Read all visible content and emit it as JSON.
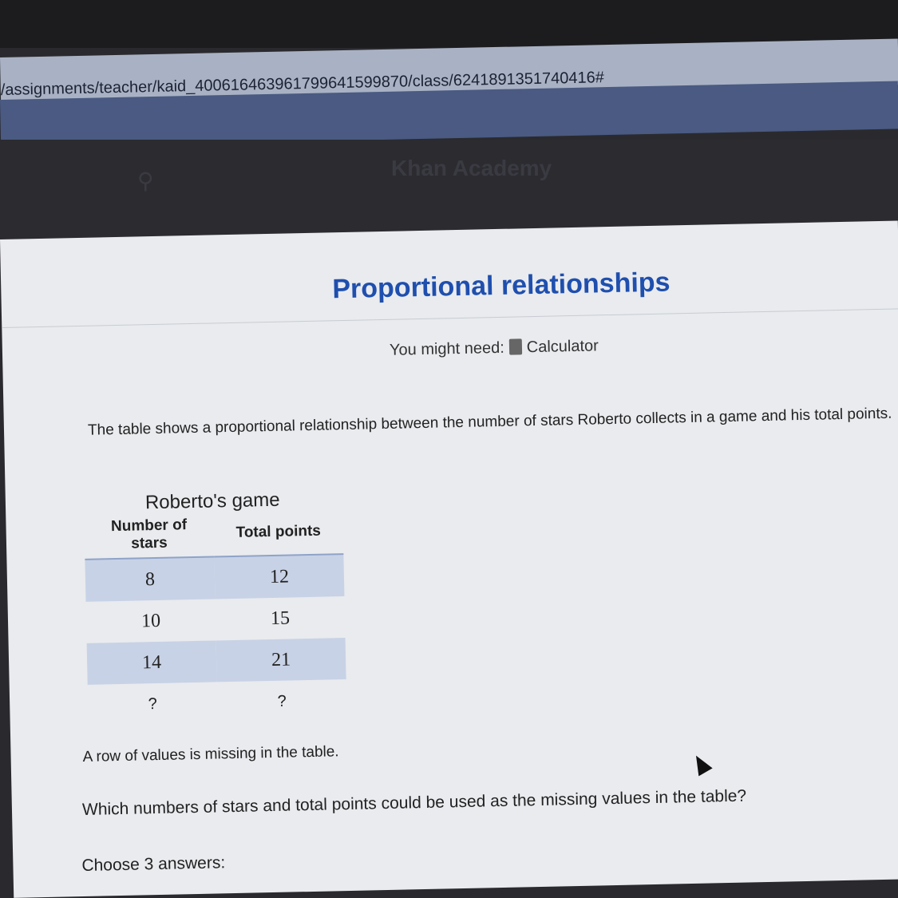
{
  "browser": {
    "url": "/assignments/teacher/kaid_400616463961799641599870/class/6241891351740416#"
  },
  "header": {
    "logo_text": "Khan Academy"
  },
  "exercise": {
    "title": "Proportional relationships",
    "you_might_need": "You might need:",
    "calculator_label": "Calculator",
    "prompt": "The table shows a proportional relationship between the number of stars Roberto collects in a game and his total points.",
    "table": {
      "title": "Roberto's game",
      "headers": [
        "Number of stars",
        "Total points"
      ],
      "rows": [
        [
          "8",
          "12"
        ],
        [
          "10",
          "15"
        ],
        [
          "14",
          "21"
        ],
        [
          "?",
          "?"
        ]
      ]
    },
    "missing_note": "A row of values is missing in the table.",
    "question": "Which numbers of stars and total points could be used as the missing values in the table?",
    "choose": "Choose 3 answers:"
  }
}
